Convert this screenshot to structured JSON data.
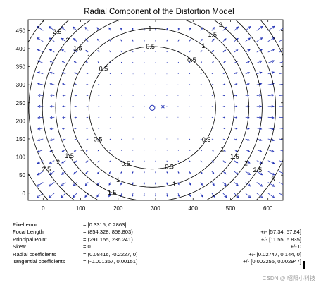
{
  "chart_data": {
    "type": "vector-field-contour",
    "title": "Radial Component of the Distortion Model",
    "xlim": [
      -40,
      640
    ],
    "ylim": [
      480,
      -20
    ],
    "x_ticks": [
      "0",
      "100",
      "200",
      "300",
      "400",
      "500",
      "600"
    ],
    "y_ticks": [
      "0",
      "50",
      "100",
      "150",
      "200",
      "250",
      "300",
      "350",
      "400",
      "450"
    ],
    "image_size": [
      640,
      480
    ],
    "principal_point": [
      291.155,
      236.241
    ],
    "image_center": [
      319.5,
      239.5
    ],
    "contour_levels": [
      0.5,
      1,
      1.5,
      2,
      2.5,
      3
    ],
    "contour_label_text": [
      "0.5",
      "1",
      "1.5",
      "2",
      "2.5",
      "3"
    ],
    "radial_coefficients": [
      0.08416,
      -0.2227,
      0
    ],
    "focal_length": [
      854.328,
      858.803
    ],
    "colors": {
      "arrows": "#1f2fb4",
      "contours": "#000000",
      "principal_point": "#1f2fb4"
    }
  },
  "stats": [
    {
      "label": "Pixel error",
      "value": "= [0.3315, 0.2863]",
      "error": ""
    },
    {
      "label": "Focal Length",
      "value": "= (854.328, 858.803)",
      "error": "+/- [57.34, 57.84]"
    },
    {
      "label": "Principal Point",
      "value": "= (291.155, 236.241)",
      "error": "+/- [11.55, 6.835]"
    },
    {
      "label": "Skew",
      "value": "= 0",
      "error": "+/- 0"
    },
    {
      "label": "Radial coefficients",
      "value": "= (0.08416, -0.2227, 0)",
      "error": "+/- [0.02747, 0.144, 0]"
    },
    {
      "label": "Tangential coefficients",
      "value": "= (-0.001357, 0.00151)",
      "error": "+/- [0.002255, 0.002947]"
    }
  ],
  "watermark": "CSDN @ 昭阳小科技"
}
